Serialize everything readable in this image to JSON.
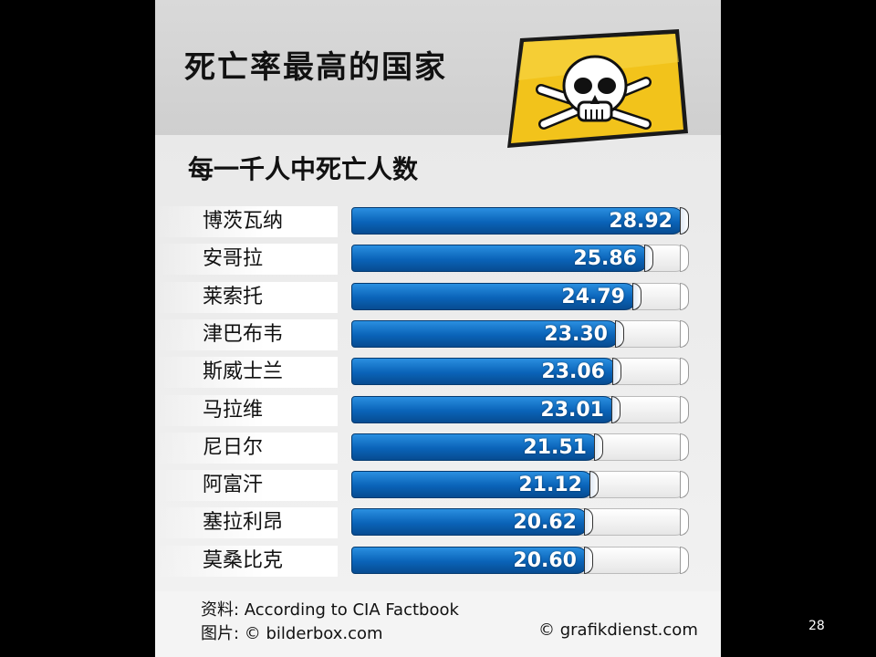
{
  "title": "死亡率最高的国家",
  "source_text": "资料: According to CIA Factbook",
  "photo_text": "图片: © bilderbox.com",
  "credit_text": "© grafikdienst.com",
  "page_number": "28",
  "colors": {
    "bar": "#0a63b8",
    "background": "#000000",
    "sign": "#f2c31b"
  },
  "icons": [
    "skull-crossbones-icon"
  ],
  "chart_data": {
    "type": "bar",
    "orientation": "horizontal",
    "title": "每一千人中死亡人数",
    "categories": [
      "博茨瓦纳",
      "安哥拉",
      "莱索托",
      "津巴布韦",
      "斯威士兰",
      "马拉维",
      "尼日尔",
      "阿富汗",
      "塞拉利昂",
      "莫桑比克"
    ],
    "values": [
      28.92,
      25.86,
      24.79,
      23.3,
      23.06,
      23.01,
      21.51,
      21.12,
      20.62,
      20.6
    ],
    "value_labels": [
      "28.92",
      "25.86",
      "24.79",
      "23.30",
      "23.06",
      "23.01",
      "21.51",
      "21.12",
      "20.62",
      "20.60"
    ],
    "xlim": [
      0,
      28.92
    ],
    "grid": false,
    "legend": "none"
  }
}
